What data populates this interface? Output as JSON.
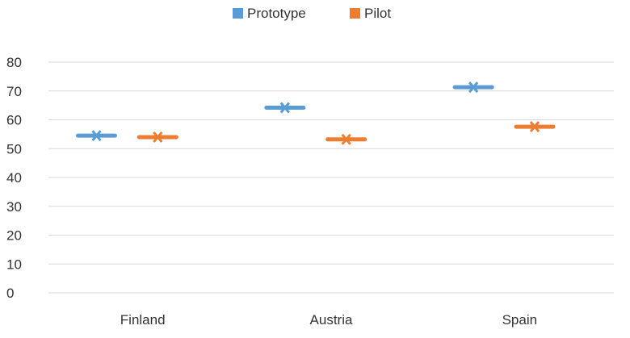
{
  "chart_data": {
    "type": "scatter",
    "categories": [
      "Finland",
      "Austria",
      "Spain"
    ],
    "series": [
      {
        "name": "Prototype",
        "values": [
          54.5,
          64.2,
          71.3
        ],
        "color": "#5b9bd5"
      },
      {
        "name": "Pilot",
        "values": [
          54.0,
          53.2,
          57.6
        ],
        "color": "#ed7d31"
      }
    ],
    "ylim": [
      0,
      80
    ],
    "yticks": [
      0,
      10,
      20,
      30,
      40,
      50,
      60,
      70,
      80
    ],
    "grid": true,
    "legend_position": "top-center",
    "marker": "horizontal-dash-with-x"
  }
}
